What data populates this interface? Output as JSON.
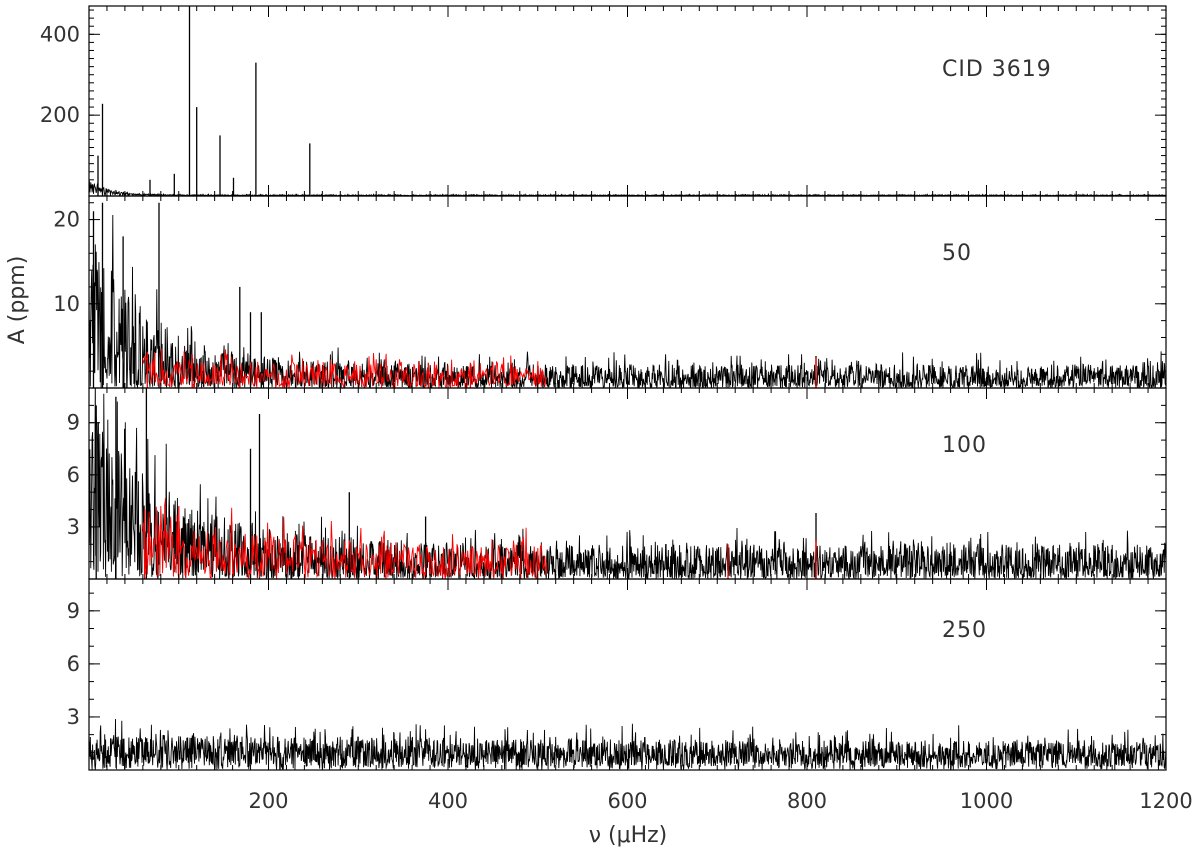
{
  "chart_data": [
    {
      "type": "line",
      "panel_label": "CID 3619",
      "xlim": [
        0,
        1200
      ],
      "ylim": [
        0,
        470
      ],
      "y_ticks": [
        200,
        400
      ],
      "y_minor_step": 20,
      "series": [
        {
          "color": "#000000",
          "noise": {
            "x_start": 0,
            "x_end": 1200,
            "step": 0.5,
            "base": 2,
            "rise_amp": 30,
            "rise_scale": 20,
            "scatter": 0.4
          },
          "peaks": [
            {
              "x": 10,
              "y": 100
            },
            {
              "x": 15,
              "y": 228
            },
            {
              "x": 68,
              "y": 40
            },
            {
              "x": 95,
              "y": 55
            },
            {
              "x": 112,
              "y": 470
            },
            {
              "x": 120,
              "y": 220
            },
            {
              "x": 146,
              "y": 150
            },
            {
              "x": 161,
              "y": 45
            },
            {
              "x": 186,
              "y": 330
            },
            {
              "x": 246,
              "y": 130
            }
          ]
        }
      ]
    },
    {
      "type": "line",
      "panel_label": "50",
      "xlim": [
        0,
        1200
      ],
      "ylim": [
        0,
        22.8
      ],
      "y_ticks": [
        10,
        20
      ],
      "y_minor_step": 2,
      "series": [
        {
          "color": "#000000",
          "noise": {
            "x_start": 0,
            "x_end": 1200,
            "step": 0.5,
            "base": 1.4,
            "rise_amp": 8,
            "rise_scale": 70,
            "scatter": 1.0
          },
          "peaks": [
            {
              "x": 5,
              "y": 21
            },
            {
              "x": 15,
              "y": 22
            },
            {
              "x": 38,
              "y": 18
            },
            {
              "x": 78,
              "y": 22
            },
            {
              "x": 168,
              "y": 12
            },
            {
              "x": 180,
              "y": 9
            },
            {
              "x": 192,
              "y": 9
            },
            {
              "x": 810,
              "y": 3.8
            }
          ]
        },
        {
          "color": "#ff0000",
          "noise": {
            "x_start": 60,
            "x_end": 510,
            "step": 1,
            "base": 1.4,
            "rise_amp": 0.9,
            "rise_scale": 200,
            "scatter": 0.85
          },
          "peaks": [
            {
              "x": 65,
              "y": 4.3
            },
            {
              "x": 115,
              "y": 4
            },
            {
              "x": 378,
              "y": 3
            },
            {
              "x": 425,
              "y": 3
            },
            {
              "x": 810,
              "y": 3.6
            }
          ]
        }
      ]
    },
    {
      "type": "line",
      "panel_label": "100",
      "xlim": [
        0,
        1200
      ],
      "ylim": [
        0,
        11
      ],
      "y_ticks": [
        3,
        6,
        9
      ],
      "y_minor_step": 1,
      "series": [
        {
          "color": "#000000",
          "noise": {
            "x_start": 0,
            "x_end": 1200,
            "step": 0.5,
            "base": 1.0,
            "rise_amp": 4,
            "rise_scale": 90,
            "scatter": 1.0
          },
          "peaks": [
            {
              "x": 8,
              "y": 10
            },
            {
              "x": 30,
              "y": 10.5
            },
            {
              "x": 64,
              "y": 11
            },
            {
              "x": 180,
              "y": 7.5
            },
            {
              "x": 190,
              "y": 9.5
            },
            {
              "x": 290,
              "y": 5
            },
            {
              "x": 375,
              "y": 3.6
            },
            {
              "x": 810,
              "y": 3.8
            }
          ]
        },
        {
          "color": "#ff0000",
          "noise": {
            "x_start": 60,
            "x_end": 510,
            "step": 1,
            "base": 1.0,
            "rise_amp": 1.2,
            "rise_scale": 150,
            "scatter": 0.9
          },
          "peaks": [
            {
              "x": 62,
              "y": 4
            },
            {
              "x": 100,
              "y": 4.2
            },
            {
              "x": 712,
              "y": 2.0
            },
            {
              "x": 810,
              "y": 2.2
            }
          ]
        }
      ]
    },
    {
      "type": "line",
      "panel_label": "250",
      "xlim": [
        0,
        1200
      ],
      "ylim": [
        0,
        10.8
      ],
      "y_ticks": [
        3,
        6,
        9
      ],
      "y_minor_step": 1,
      "xlabel": "ν (μHz)",
      "x_ticks": [
        200,
        400,
        600,
        800,
        1000,
        1200
      ],
      "x_minor_step": 20,
      "series": [
        {
          "color": "#000000",
          "noise": {
            "x_start": 0,
            "x_end": 1200,
            "step": 0.5,
            "base": 0.9,
            "rise_amp": 0.3,
            "rise_scale": 500,
            "scatter": 0.75
          },
          "peaks": []
        }
      ]
    }
  ],
  "ylabel": "A (ppm)"
}
